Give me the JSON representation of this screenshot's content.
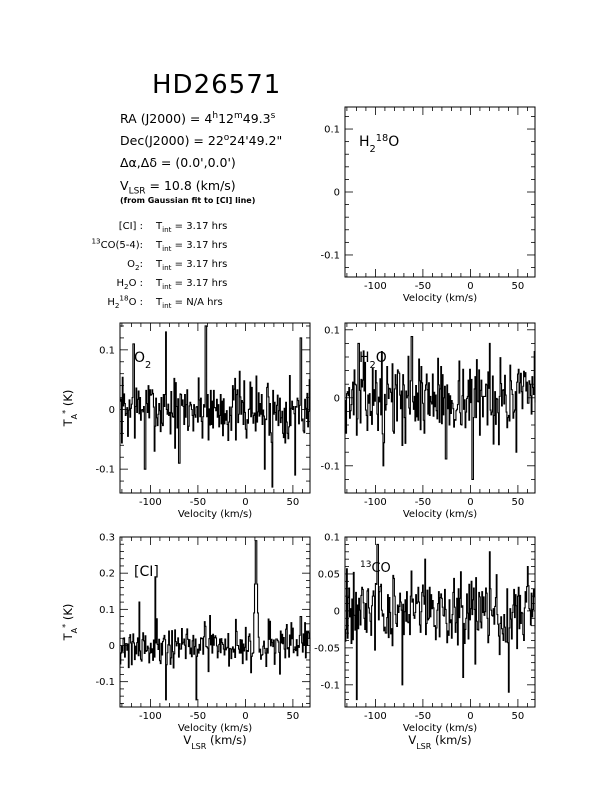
{
  "header": {
    "title": "HD26571",
    "ra": {
      "label": "RA (J2000) =",
      "h": "4",
      "h_unit": "h",
      "m": "12",
      "m_unit": "m",
      "s": "49.3",
      "s_unit": "s"
    },
    "dec": {
      "label": "Dec(J2000) =",
      "deg": "22",
      "deg_unit": "o",
      "rest": "24'49.2\""
    },
    "offset": {
      "label": "Δα,Δδ =",
      "value": "(0.0',0.0')"
    },
    "vlsr": {
      "label_main": "V",
      "label_sub": "LSR",
      "value": " = 10.8 (km/s)"
    },
    "vlsr_note": "(from Gaussian fit to [CI] line)",
    "tint_label": "T",
    "tint_sub": "int",
    "tint_eq": "=",
    "integrations": [
      {
        "line": "[CI] :",
        "time": "3.17 hrs"
      },
      {
        "line_pre": "13",
        "line": "CO(5-4):",
        "time": "3.17 hrs"
      },
      {
        "line": "O",
        "line_sub": "2",
        "line_post": ":",
        "time": "3.17 hrs"
      },
      {
        "line": "H",
        "line_sub": "2",
        "line_post": "O :",
        "time": "3.17 hrs"
      },
      {
        "line": "H",
        "line_sub": "2",
        "line_sup": "18",
        "line_post": "O :",
        "time": "N/A hrs"
      }
    ]
  },
  "chart_data": [
    {
      "id": "h2-18o",
      "type": "line",
      "label": {
        "main": "H",
        "sub": "2",
        "sup": "18",
        "post": "O"
      },
      "xlim": [
        -132,
        68
      ],
      "ylim": [
        -0.135,
        0.135
      ],
      "xticks": [
        -100,
        -50,
        0,
        50
      ],
      "xticklabels": [
        "-100",
        "-50",
        "0",
        "50"
      ],
      "yticks": [
        -0.1,
        0,
        0.1
      ],
      "yticklabels": [
        "-0.1",
        "0",
        "0.1"
      ],
      "xlabel": "Velocity (km/s)",
      "ylabel": "",
      "xlabel2": "",
      "noise": 0,
      "spikes": [],
      "seed": 1,
      "x": [],
      "y": []
    },
    {
      "id": "o2",
      "type": "line",
      "label": {
        "main": "O",
        "sub": "2",
        "sup": "",
        "post": ""
      },
      "xlim": [
        -132,
        68
      ],
      "ylim": [
        -0.14,
        0.145
      ],
      "xticks": [
        -100,
        -50,
        0,
        50
      ],
      "xticklabels": [
        "-100",
        "-50",
        "0",
        "50"
      ],
      "yticks": [
        -0.1,
        0,
        0.1
      ],
      "yticklabels": [
        "-0.1",
        "0",
        "0.1"
      ],
      "xlabel": "Velocity (km/s)",
      "ylabel": "T_A* (K)",
      "xlabel2": "",
      "noise": 0.042,
      "seed": 7,
      "spikes": [
        [
          -118,
          0.11
        ],
        [
          -106,
          -0.1
        ],
        [
          -84,
          0.13
        ],
        [
          -70,
          -0.09
        ],
        [
          -42,
          0.14
        ],
        [
          20,
          -0.1
        ],
        [
          28,
          -0.13
        ],
        [
          52,
          -0.11
        ],
        [
          58,
          0.12
        ]
      ],
      "x": [],
      "y": []
    },
    {
      "id": "h2o",
      "type": "line",
      "label": {
        "main": "H",
        "sub": "2",
        "sup": "",
        "post": "O"
      },
      "xlim": [
        -132,
        68
      ],
      "ylim": [
        -0.14,
        0.11
      ],
      "xticks": [
        -100,
        -50,
        0,
        50
      ],
      "xticklabels": [
        "-100",
        "-50",
        "0",
        "50"
      ],
      "yticks": [
        -0.1,
        0,
        0.1
      ],
      "yticklabels": [
        "-0.1",
        "0",
        "0.1"
      ],
      "xlabel": "Velocity (km/s)",
      "ylabel": "",
      "xlabel2": "",
      "noise": 0.042,
      "seed": 13,
      "spikes": [
        [
          -118,
          0.08
        ],
        [
          -92,
          -0.1
        ],
        [
          -62,
          0.09
        ],
        [
          -26,
          -0.09
        ],
        [
          2,
          -0.12
        ],
        [
          20,
          0.08
        ],
        [
          48,
          -0.08
        ]
      ],
      "x": [],
      "y": []
    },
    {
      "id": "ci",
      "type": "line",
      "label": {
        "main": "[CI]",
        "sub": "",
        "sup": "",
        "post": ""
      },
      "xlim": [
        -132,
        68
      ],
      "ylim": [
        -0.17,
        0.3
      ],
      "xticks": [
        -100,
        -50,
        0,
        50
      ],
      "xticklabels": [
        "-100",
        "-50",
        "0",
        "50"
      ],
      "yticks": [
        -0.1,
        0,
        0.1,
        0.2,
        0.3
      ],
      "yticklabels": [
        "-0.1",
        "0",
        "0.1",
        "0.2",
        "0.3"
      ],
      "xlabel": "Velocity (km/s)",
      "ylabel": "T_A* (K)",
      "xlabel2": "V_LSR (km/s)",
      "noise": 0.045,
      "seed": 21,
      "spikes": [
        [
          -95,
          0.19
        ],
        [
          -112,
          0.12
        ],
        [
          -84,
          -0.15
        ],
        [
          -52,
          -0.15
        ],
        [
          10.8,
          0.29
        ],
        [
          58,
          0.08
        ]
      ],
      "x": [],
      "y": []
    },
    {
      "id": "13co",
      "type": "line",
      "label": {
        "main": "CO",
        "sub": "",
        "sup": "13",
        "post": ""
      },
      "xlim": [
        -132,
        68
      ],
      "ylim": [
        -0.13,
        0.1
      ],
      "xticks": [
        -100,
        -50,
        0,
        50
      ],
      "xticklabels": [
        "-100",
        "-50",
        "0",
        "50"
      ],
      "yticks": [
        -0.1,
        -0.05,
        0,
        0.05,
        0.1
      ],
      "yticklabels": [
        "-0.1",
        "-0.05",
        "0",
        "0.05",
        "0.1"
      ],
      "xlabel": "Velocity (km/s)",
      "ylabel": "",
      "xlabel2": "V_LSR (km/s)",
      "noise": 0.04,
      "seed": 34,
      "spikes": [
        [
          -120,
          -0.12
        ],
        [
          -98,
          0.09
        ],
        [
          -72,
          -0.1
        ],
        [
          -48,
          0.07
        ],
        [
          -8,
          -0.09
        ],
        [
          20,
          0.08
        ],
        [
          40,
          -0.11
        ],
        [
          60,
          0.06
        ]
      ],
      "x": [],
      "y": []
    }
  ]
}
